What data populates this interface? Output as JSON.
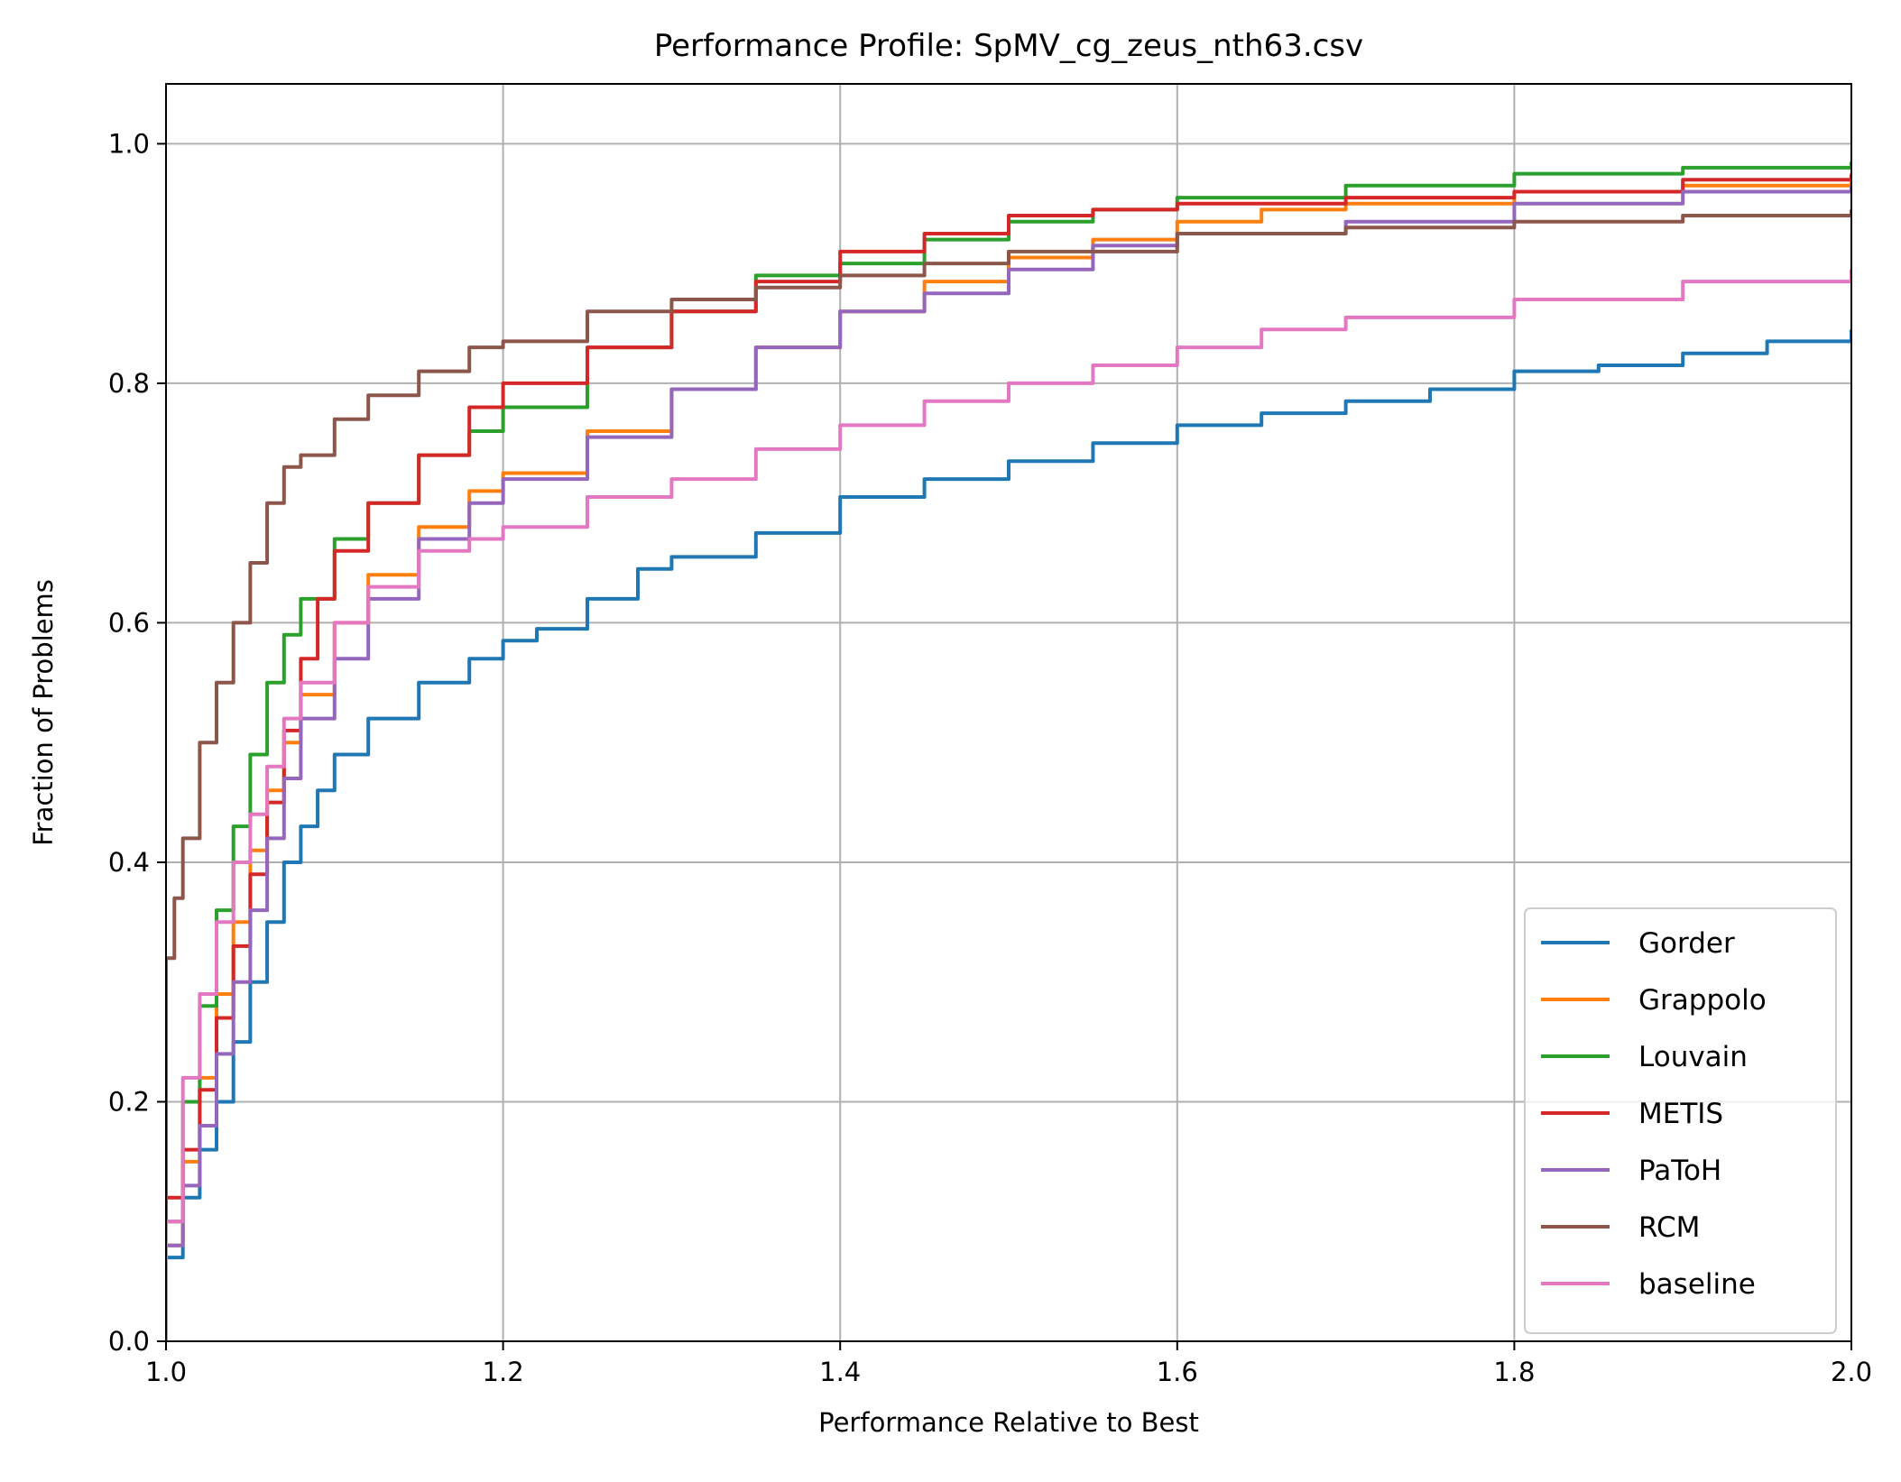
{
  "chart_data": {
    "type": "line",
    "title": "Performance Profile: SpMV_cg_zeus_nth63.csv",
    "xlabel": "Performance Relative to Best",
    "ylabel": "Fraction of Problems",
    "xlim": [
      1.0,
      2.0
    ],
    "ylim": [
      0.0,
      1.05
    ],
    "xticks": [
      1.0,
      1.2,
      1.4,
      1.6,
      1.8,
      2.0
    ],
    "xtick_labels": [
      "1.0",
      "1.2",
      "1.4",
      "1.6",
      "1.8",
      "2.0"
    ],
    "yticks": [
      0.0,
      0.2,
      0.4,
      0.6,
      0.8,
      1.0
    ],
    "ytick_labels": [
      "0.0",
      "0.2",
      "0.4",
      "0.6",
      "0.8",
      "1.0"
    ],
    "grid": true,
    "legend_position": "lower-right",
    "series": [
      {
        "name": "Gorder",
        "color": "#1f77b4",
        "x": [
          1.0,
          1.01,
          1.02,
          1.03,
          1.04,
          1.05,
          1.06,
          1.07,
          1.08,
          1.09,
          1.1,
          1.12,
          1.15,
          1.18,
          1.2,
          1.22,
          1.25,
          1.28,
          1.3,
          1.35,
          1.4,
          1.45,
          1.5,
          1.55,
          1.6,
          1.65,
          1.7,
          1.75,
          1.8,
          1.85,
          1.9,
          1.95,
          2.0
        ],
        "y": [
          0.07,
          0.12,
          0.16,
          0.2,
          0.25,
          0.3,
          0.35,
          0.4,
          0.43,
          0.46,
          0.49,
          0.52,
          0.55,
          0.57,
          0.585,
          0.595,
          0.62,
          0.645,
          0.655,
          0.675,
          0.705,
          0.72,
          0.735,
          0.75,
          0.765,
          0.775,
          0.785,
          0.795,
          0.81,
          0.815,
          0.825,
          0.835,
          0.845
        ]
      },
      {
        "name": "Grappolo",
        "color": "#ff7f0e",
        "x": [
          1.0,
          1.01,
          1.02,
          1.03,
          1.04,
          1.05,
          1.06,
          1.07,
          1.08,
          1.1,
          1.12,
          1.15,
          1.18,
          1.2,
          1.25,
          1.3,
          1.35,
          1.4,
          1.45,
          1.5,
          1.55,
          1.6,
          1.65,
          1.7,
          1.8,
          1.9,
          2.0
        ],
        "y": [
          0.08,
          0.15,
          0.22,
          0.29,
          0.35,
          0.41,
          0.46,
          0.5,
          0.54,
          0.6,
          0.64,
          0.68,
          0.71,
          0.725,
          0.76,
          0.795,
          0.83,
          0.86,
          0.885,
          0.905,
          0.92,
          0.935,
          0.945,
          0.95,
          0.96,
          0.965,
          0.97
        ]
      },
      {
        "name": "Louvain",
        "color": "#2ca02c",
        "x": [
          1.0,
          1.01,
          1.02,
          1.03,
          1.04,
          1.05,
          1.06,
          1.07,
          1.08,
          1.1,
          1.12,
          1.15,
          1.18,
          1.2,
          1.25,
          1.3,
          1.35,
          1.4,
          1.45,
          1.5,
          1.55,
          1.6,
          1.7,
          1.8,
          1.9,
          2.0
        ],
        "y": [
          0.1,
          0.2,
          0.28,
          0.36,
          0.43,
          0.49,
          0.55,
          0.59,
          0.62,
          0.67,
          0.7,
          0.74,
          0.76,
          0.78,
          0.83,
          0.86,
          0.89,
          0.9,
          0.92,
          0.935,
          0.945,
          0.955,
          0.965,
          0.975,
          0.98,
          0.985
        ]
      },
      {
        "name": "METIS",
        "color": "#d62728",
        "x": [
          1.0,
          1.01,
          1.02,
          1.03,
          1.04,
          1.05,
          1.06,
          1.07,
          1.08,
          1.09,
          1.1,
          1.12,
          1.15,
          1.18,
          1.2,
          1.25,
          1.3,
          1.35,
          1.4,
          1.45,
          1.5,
          1.55,
          1.6,
          1.7,
          1.8,
          1.9,
          2.0
        ],
        "y": [
          0.12,
          0.16,
          0.21,
          0.27,
          0.33,
          0.39,
          0.45,
          0.51,
          0.57,
          0.62,
          0.66,
          0.7,
          0.74,
          0.78,
          0.8,
          0.83,
          0.86,
          0.885,
          0.91,
          0.925,
          0.94,
          0.945,
          0.95,
          0.955,
          0.96,
          0.97,
          0.975
        ]
      },
      {
        "name": "PaToH",
        "color": "#9467bd",
        "x": [
          1.0,
          1.01,
          1.02,
          1.03,
          1.04,
          1.05,
          1.06,
          1.07,
          1.08,
          1.1,
          1.12,
          1.15,
          1.18,
          1.2,
          1.25,
          1.3,
          1.35,
          1.4,
          1.45,
          1.5,
          1.55,
          1.6,
          1.7,
          1.8,
          1.9,
          2.0
        ],
        "y": [
          0.08,
          0.13,
          0.18,
          0.24,
          0.3,
          0.36,
          0.42,
          0.47,
          0.52,
          0.57,
          0.62,
          0.67,
          0.7,
          0.72,
          0.755,
          0.795,
          0.83,
          0.86,
          0.875,
          0.895,
          0.915,
          0.925,
          0.935,
          0.95,
          0.96,
          0.965
        ]
      },
      {
        "name": "RCM",
        "color": "#8c564b",
        "x": [
          1.0,
          1.005,
          1.01,
          1.02,
          1.03,
          1.04,
          1.05,
          1.06,
          1.07,
          1.08,
          1.1,
          1.12,
          1.15,
          1.18,
          1.2,
          1.25,
          1.3,
          1.35,
          1.4,
          1.45,
          1.5,
          1.6,
          1.7,
          1.8,
          1.9,
          2.0
        ],
        "y": [
          0.32,
          0.37,
          0.42,
          0.5,
          0.55,
          0.6,
          0.65,
          0.7,
          0.73,
          0.74,
          0.77,
          0.79,
          0.81,
          0.83,
          0.835,
          0.86,
          0.87,
          0.88,
          0.89,
          0.9,
          0.91,
          0.925,
          0.93,
          0.935,
          0.94,
          0.945
        ]
      },
      {
        "name": "baseline",
        "color": "#e377c2",
        "x": [
          1.0,
          1.01,
          1.02,
          1.03,
          1.04,
          1.05,
          1.06,
          1.07,
          1.08,
          1.1,
          1.12,
          1.15,
          1.18,
          1.2,
          1.25,
          1.3,
          1.35,
          1.4,
          1.45,
          1.5,
          1.55,
          1.6,
          1.65,
          1.7,
          1.8,
          1.9,
          2.0
        ],
        "y": [
          0.1,
          0.22,
          0.29,
          0.35,
          0.4,
          0.44,
          0.48,
          0.52,
          0.55,
          0.6,
          0.63,
          0.66,
          0.67,
          0.68,
          0.705,
          0.72,
          0.745,
          0.765,
          0.785,
          0.8,
          0.815,
          0.83,
          0.845,
          0.855,
          0.87,
          0.885,
          0.895
        ]
      }
    ]
  }
}
